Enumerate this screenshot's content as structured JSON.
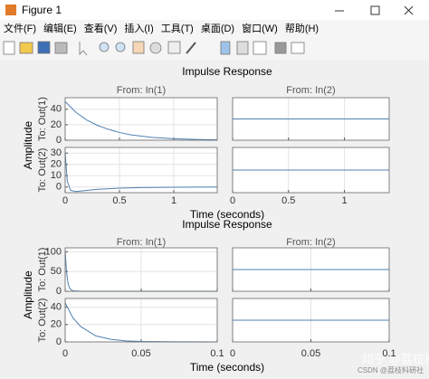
{
  "window": {
    "title": "Figure 1"
  },
  "menu": [
    "文件(F)",
    "编辑(E)",
    "查看(V)",
    "插入(I)",
    "工具(T)",
    "桌面(D)",
    "窗口(W)",
    "帮助(H)"
  ],
  "watermark": {
    "main": "知乎 @荔枝科研社",
    "small": "CSDN @荔枝科研社"
  },
  "chart_data": [
    {
      "type": "line",
      "title": "Impulse Response",
      "xlabel": "Time (seconds)",
      "ylabel": "Amplitude",
      "column_titles": [
        "From: In(1)",
        "From: In(2)"
      ],
      "row_labels": [
        "To: Out(1)",
        "To: Out(2)"
      ],
      "color": "#4f81b0",
      "grid": true,
      "xlim": [
        0,
        1.4
      ],
      "xticks": [
        0,
        0.5,
        1
      ],
      "panels": [
        {
          "ylim": [
            0,
            55
          ],
          "yticks": [
            0,
            20,
            40
          ],
          "x": [
            0,
            0.1,
            0.2,
            0.3,
            0.4,
            0.5,
            0.6,
            0.8,
            1.0,
            1.2,
            1.4
          ],
          "values": [
            50,
            36,
            26,
            19,
            14,
            10,
            7,
            3.7,
            1.9,
            1,
            0.5
          ]
        },
        {
          "ylim": [
            -1,
            1
          ],
          "yticks": [],
          "x": [
            0,
            1.4
          ],
          "values": [
            0,
            0
          ]
        },
        {
          "ylim": [
            -5,
            35
          ],
          "yticks": [
            0,
            10,
            20,
            30
          ],
          "x": [
            0,
            0.02,
            0.05,
            0.1,
            0.2,
            0.3,
            0.5,
            0.7,
            1,
            1.4
          ],
          "values": [
            30,
            5,
            -3,
            -4,
            -3,
            -2,
            -1,
            -0.5,
            -0.2,
            0
          ]
        },
        {
          "ylim": [
            -1,
            1
          ],
          "yticks": [],
          "x": [
            0,
            1.4
          ],
          "values": [
            0,
            0
          ]
        }
      ]
    },
    {
      "type": "line",
      "title": "Impulse Response",
      "xlabel": "Time (seconds)",
      "ylabel": "Amplitude",
      "column_titles": [
        "From: In(1)",
        "From: In(2)"
      ],
      "row_labels": [
        "To: Out(1)",
        "To: Out(2)"
      ],
      "color": "#4f81b0",
      "grid": true,
      "xlim": [
        0,
        0.1
      ],
      "xticks": [
        0,
        0.05,
        0.1
      ],
      "panels": [
        {
          "ylim": [
            0,
            110
          ],
          "yticks": [
            0,
            50,
            100
          ],
          "x": [
            0,
            0.001,
            0.002,
            0.003,
            0.005,
            0.01,
            0.1
          ],
          "values": [
            100,
            45,
            18,
            7,
            1,
            0,
            0
          ]
        },
        {
          "ylim": [
            -1,
            1
          ],
          "yticks": [],
          "x": [
            0,
            0.1
          ],
          "values": [
            0,
            0
          ]
        },
        {
          "ylim": [
            0,
            50
          ],
          "yticks": [
            0,
            20,
            40
          ],
          "x": [
            0,
            0.005,
            0.01,
            0.02,
            0.03,
            0.04,
            0.05,
            0.07,
            0.1
          ],
          "values": [
            45,
            28,
            18,
            7,
            3,
            1.2,
            0.5,
            0.1,
            0
          ]
        },
        {
          "ylim": [
            -1,
            1
          ],
          "yticks": [],
          "x": [
            0,
            0.1
          ],
          "values": [
            0,
            0
          ]
        }
      ]
    }
  ]
}
